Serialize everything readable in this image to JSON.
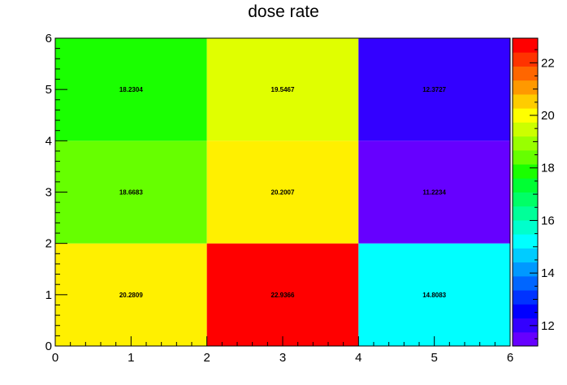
{
  "chart_data": {
    "type": "heatmap",
    "title": "dose rate",
    "xlabel": "",
    "ylabel": "",
    "x_edges": [
      0,
      2,
      4,
      6
    ],
    "y_edges": [
      0,
      2,
      4,
      6
    ],
    "xlim": [
      0,
      6
    ],
    "ylim": [
      0,
      6
    ],
    "x_tick_labels": [
      "0",
      "1",
      "2",
      "3",
      "4",
      "5",
      "6"
    ],
    "y_tick_labels": [
      "0",
      "1",
      "2",
      "3",
      "4",
      "5",
      "6"
    ],
    "cells": [
      {
        "x": [
          0,
          2
        ],
        "y": [
          0,
          2
        ],
        "value": 20.2809,
        "label": "20.2809",
        "color": "#fff000"
      },
      {
        "x": [
          2,
          4
        ],
        "y": [
          0,
          2
        ],
        "value": 22.9366,
        "label": "22.9366",
        "color": "#ff0000"
      },
      {
        "x": [
          4,
          6
        ],
        "y": [
          0,
          2
        ],
        "value": 14.8083,
        "label": "14.8083",
        "color": "#00ffff"
      },
      {
        "x": [
          0,
          2
        ],
        "y": [
          2,
          4
        ],
        "value": 18.6683,
        "label": "18.6683",
        "color": "#66ff00"
      },
      {
        "x": [
          2,
          4
        ],
        "y": [
          2,
          4
        ],
        "value": 20.2007,
        "label": "20.2007",
        "color": "#fff000"
      },
      {
        "x": [
          4,
          6
        ],
        "y": [
          2,
          4
        ],
        "value": 11.2234,
        "label": "11.2234",
        "color": "#6600ff"
      },
      {
        "x": [
          0,
          2
        ],
        "y": [
          4,
          6
        ],
        "value": 18.2304,
        "label": "18.2304",
        "color": "#1aff00"
      },
      {
        "x": [
          2,
          4
        ],
        "y": [
          4,
          6
        ],
        "value": 19.5467,
        "label": "19.5467",
        "color": "#e0ff00"
      },
      {
        "x": [
          4,
          6
        ],
        "y": [
          4,
          6
        ],
        "value": 12.3727,
        "label": "12.3727",
        "color": "#3300ff"
      }
    ],
    "colorbar": {
      "range": [
        11.2234,
        22.9366
      ],
      "ticks": [
        12,
        14,
        16,
        18,
        20,
        22
      ],
      "tick_labels": [
        "12",
        "14",
        "16",
        "18",
        "20",
        "22"
      ],
      "palette": [
        "#6600ff",
        "#3300ff",
        "#0000ff",
        "#0033ff",
        "#0066ff",
        "#0099ff",
        "#00ccff",
        "#00ffff",
        "#00ffcc",
        "#00ff99",
        "#00ff66",
        "#00ff33",
        "#1aff00",
        "#66ff00",
        "#99ff00",
        "#ccff00",
        "#ffff00",
        "#ffcc00",
        "#ff9900",
        "#ff6600",
        "#ff3300",
        "#ff0000"
      ]
    },
    "grid": false,
    "legend": "colorbar-right"
  }
}
